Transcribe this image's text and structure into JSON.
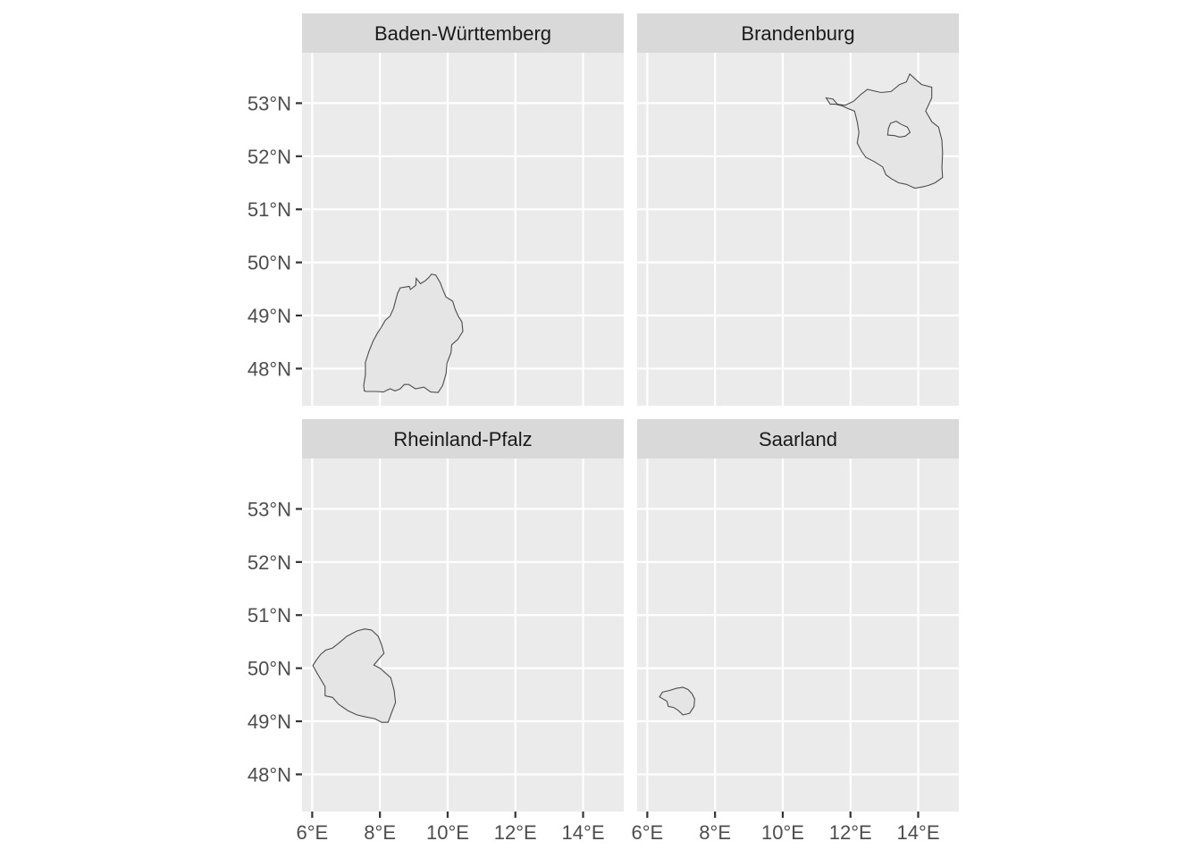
{
  "figure": {
    "type": "faceted-map",
    "facets": [
      {
        "id": "bw",
        "title": "Baden-Württemberg"
      },
      {
        "id": "bb",
        "title": "Brandenburg"
      },
      {
        "id": "rp",
        "title": "Rheinland-Pfalz"
      },
      {
        "id": "sl",
        "title": "Saarland"
      }
    ],
    "x_axis": {
      "range": [
        5.7,
        15.2
      ],
      "ticks": [
        6,
        8,
        10,
        12,
        14
      ],
      "tick_labels": [
        "6°E",
        "8°E",
        "10°E",
        "12°E",
        "14°E"
      ]
    },
    "y_axis": {
      "range": [
        47.3,
        53.95
      ],
      "ticks": [
        48,
        49,
        50,
        51,
        52,
        53
      ],
      "tick_labels": [
        "48°N",
        "49°N",
        "50°N",
        "51°N",
        "52°N",
        "53°N"
      ]
    },
    "colors": {
      "panel_background": "#ebebeb",
      "strip_background": "#d9d9d9",
      "grid": "#ffffff",
      "region_fill": "#e5e5e5",
      "region_outline": "#4d4d4d"
    },
    "grid": true
  }
}
